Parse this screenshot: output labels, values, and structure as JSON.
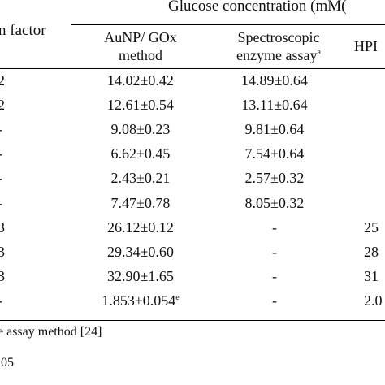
{
  "table": {
    "header": {
      "group_title": "Glucose concentration (mM(",
      "col0": "n factor",
      "col1_line1": "AuNP/ GOx",
      "col1_line2": "method",
      "col2_line1": "Spectroscopic",
      "col2_line2": "enzyme assay",
      "col2_sup": "a",
      "col3": "HPI"
    },
    "rows": [
      {
        "factor": "2",
        "aunp": "14.02±0.42",
        "spec": "14.89±0.64",
        "hplc": ""
      },
      {
        "factor": "2",
        "aunp": "12.61±0.54",
        "spec": "13.11±0.64",
        "hplc": ""
      },
      {
        "factor": "-",
        "aunp": "9.08±0.23",
        "spec": "9.81±0.64",
        "hplc": ""
      },
      {
        "factor": "-",
        "aunp": "6.62±0.45",
        "spec": "7.54±0.64",
        "hplc": ""
      },
      {
        "factor": "-",
        "aunp": "2.43±0.21",
        "spec": "2.57±0.32",
        "hplc": ""
      },
      {
        "factor": "-",
        "aunp": "7.47±0.78",
        "spec": "8.05±0.32",
        "hplc": ""
      },
      {
        "factor": "3",
        "aunp": "26.12±0.12",
        "spec": "-",
        "hplc": "25"
      },
      {
        "factor": "3",
        "aunp": "29.34±0.60",
        "spec": "-",
        "hplc": "28"
      },
      {
        "factor": "3",
        "aunp": "32.90±1.65",
        "spec": "-",
        "hplc": "31"
      },
      {
        "factor": "-",
        "aunp": "1.853±0.054",
        "aunp_sup": "e",
        "spec": "-",
        "hplc": "2.0"
      }
    ]
  },
  "footnotes": {
    "line1": "e assay method [24]",
    "line2": ".05"
  }
}
